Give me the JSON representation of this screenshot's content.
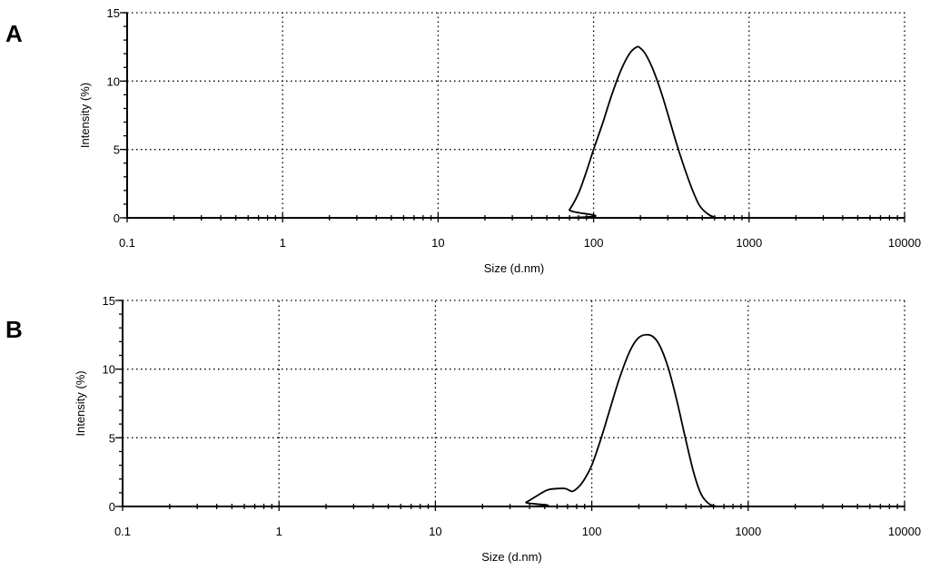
{
  "chart_data": [
    {
      "type": "line",
      "panel_label": "A",
      "xlabel": "Size (d.nm)",
      "ylabel": "Intensity (%)",
      "x_scale": "log",
      "xlim": [
        0.1,
        10000
      ],
      "ylim": [
        0,
        15
      ],
      "x_ticks": [
        "0.1",
        "1",
        "10",
        "100",
        "1000",
        "10000"
      ],
      "y_ticks": [
        "0",
        "5",
        "10",
        "15"
      ],
      "grid": true,
      "series": [
        {
          "x": [
            62,
            70,
            80,
            90,
            100,
            115,
            130,
            150,
            170,
            190,
            200,
            215,
            240,
            270,
            300,
            340,
            380,
            430,
            480,
            540,
            600,
            660
          ],
          "y": [
            0,
            0.6,
            1.8,
            3.4,
            5.0,
            7.0,
            8.9,
            10.8,
            12.0,
            12.5,
            12.4,
            12.0,
            10.9,
            9.3,
            7.6,
            5.5,
            3.8,
            2.1,
            0.9,
            0.3,
            0.05,
            0
          ]
        }
      ]
    },
    {
      "type": "line",
      "panel_label": "B",
      "xlabel": "Size (d.nm)",
      "ylabel": "Intensity (%)",
      "x_scale": "log",
      "xlim": [
        0.1,
        10000
      ],
      "ylim": [
        0,
        15
      ],
      "x_ticks": [
        "0.1",
        "1",
        "10",
        "100",
        "1000",
        "10000"
      ],
      "y_ticks": [
        "0",
        "5",
        "10",
        "15"
      ],
      "grid": true,
      "series": [
        {
          "x": [
            33,
            38,
            45,
            52,
            60,
            68,
            75,
            82,
            90,
            100,
            115,
            130,
            150,
            175,
            200,
            230,
            255,
            280,
            310,
            350,
            400,
            450,
            500,
            560,
            620,
            700
          ],
          "y": [
            0,
            0.3,
            0.8,
            1.2,
            1.3,
            1.3,
            1.1,
            1.4,
            2.0,
            3.0,
            5.0,
            7.0,
            9.3,
            11.3,
            12.3,
            12.5,
            12.2,
            11.4,
            10.0,
            7.7,
            4.8,
            2.4,
            0.9,
            0.2,
            0.02,
            0
          ]
        }
      ]
    }
  ]
}
